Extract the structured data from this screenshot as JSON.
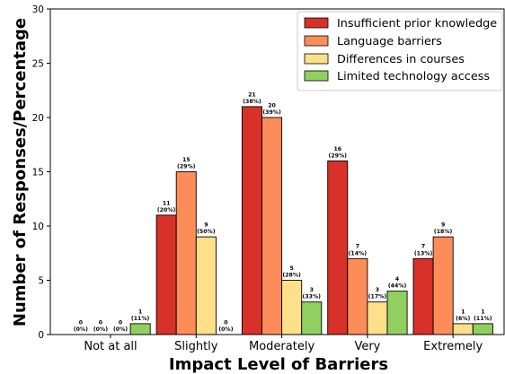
{
  "chart_data": {
    "type": "bar",
    "xlabel": "Impact Level of Barriers",
    "ylabel": "Number of Responses/Percentage",
    "ylim": [
      0,
      30
    ],
    "yticks": [
      0,
      5,
      10,
      15,
      20,
      25,
      30
    ],
    "categories": [
      "Not at all",
      "Slightly",
      "Moderately",
      "Very",
      "Extremely"
    ],
    "legend_position": "top-right",
    "series": [
      {
        "name": "Insufficient prior knowledge",
        "color": "#d7312a",
        "values": [
          0,
          11,
          21,
          16,
          7
        ],
        "labels": [
          "0\n(0%)",
          "11\n(20%)",
          "21\n(38%)",
          "16\n(29%)",
          "7\n(13%)"
        ]
      },
      {
        "name": "Language barriers",
        "color": "#fc8d59",
        "values": [
          0,
          15,
          20,
          7,
          9
        ],
        "labels": [
          "0\n(0%)",
          "15\n(29%)",
          "20\n(39%)",
          "7\n(14%)",
          "9\n(18%)"
        ]
      },
      {
        "name": "Differences in courses",
        "color": "#fee08b",
        "values": [
          0,
          9,
          5,
          3,
          1
        ],
        "labels": [
          "0\n(0%)",
          "9\n(50%)",
          "5\n(28%)",
          "3\n(17%)",
          "1\n(6%)"
        ]
      },
      {
        "name": "Limited technology access",
        "color": "#91cf60",
        "values": [
          1,
          0,
          3,
          4,
          1
        ],
        "labels": [
          "1\n(11%)",
          "0\n(0%)",
          "3\n(33%)",
          "4\n(44%)",
          "1\n(11%)"
        ]
      }
    ]
  }
}
